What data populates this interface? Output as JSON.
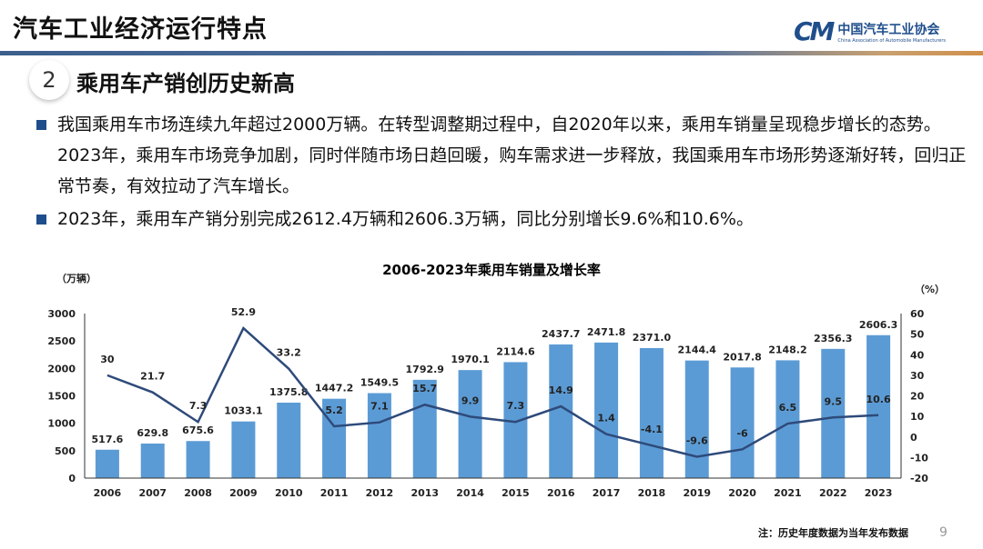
{
  "header": {
    "title": "汽车工业经济运行特点",
    "logo_cn": "中国汽车工业协会",
    "logo_en": "China Association of Automobile Manufacturers",
    "logo_mark": "CM"
  },
  "section": {
    "number": "2",
    "title": "乘用车产销创历史新高"
  },
  "bullets": [
    "我国乘用车市场连续九年超过2000万辆。在转型调整期过程中，自2020年以来，乘用车销量呈现稳步增长的态势。2023年，乘用车市场竞争加剧，同时伴随市场日趋回暖，购车需求进一步释放，我国乘用车市场形势逐渐好转，回归正常节奏，有效拉动了汽车增长。",
    "2023年，乘用车产销分别完成2612.4万辆和2606.3万辆，同比分别增长9.6%和10.6%。"
  ],
  "note": "注：历史年度数据为当年发布数据",
  "page_number": "9",
  "chart_data": {
    "type": "bar+line",
    "title": "2006-2023年乘用车销量及增长率",
    "ylabel_left": "（万辆）",
    "ylabel_right": "（%）",
    "ylim_left": [
      0,
      3000
    ],
    "yticks_left": [
      0,
      500,
      1000,
      1500,
      2000,
      2500,
      3000
    ],
    "ylim_right": [
      -20,
      60
    ],
    "yticks_right": [
      -20,
      -10,
      0,
      10,
      20,
      30,
      40,
      50,
      60
    ],
    "categories": [
      "2006",
      "2007",
      "2008",
      "2009",
      "2010",
      "2011",
      "2012",
      "2013",
      "2014",
      "2015",
      "2016",
      "2017",
      "2018",
      "2019",
      "2020",
      "2021",
      "2022",
      "2023"
    ],
    "bars": {
      "labels": [
        "517.6",
        "629.8",
        "675.6",
        "1033.1",
        "1375.8",
        "1447.2",
        "1549.5",
        "1792.9",
        "1970.1",
        "2114.6",
        "2437.7",
        "2471.8",
        "2371.0",
        "2144.4",
        "2017.8",
        "2148.2",
        "2356.3",
        "2606.3"
      ],
      "values": [
        517.6,
        629.8,
        675.6,
        1033.1,
        1375.8,
        1447.2,
        1549.5,
        1792.9,
        1970.1,
        2114.6,
        2437.7,
        2471.8,
        2371.0,
        2144.4,
        2017.8,
        2148.2,
        2356.3,
        2606.3
      ],
      "color": "#5b9bd5"
    },
    "line": {
      "values": [
        30,
        21.7,
        7.3,
        52.9,
        33.2,
        5.2,
        7.1,
        15.7,
        9.9,
        7.3,
        14.9,
        1.4,
        -4.1,
        -9.6,
        -6,
        6.5,
        9.5,
        10.6
      ],
      "color": "#2e4a7a"
    },
    "grid": false
  }
}
